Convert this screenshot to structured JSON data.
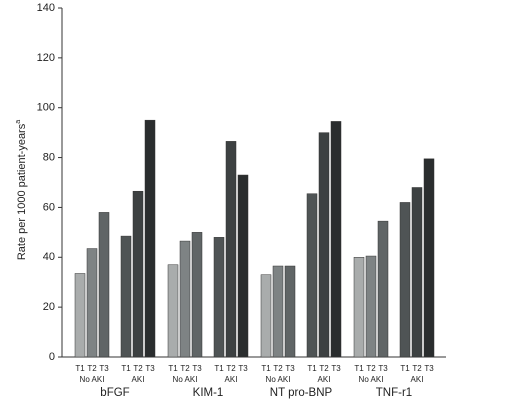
{
  "chart_data": {
    "type": "grouped-bar",
    "ylabel": "Rate per 1000 patient-years",
    "ylabel_note": "a",
    "categories": [
      "bFGF",
      "KIM-1",
      "NT pro-BNP",
      "TNF-r1"
    ],
    "groups": [
      {
        "name": "No AKI",
        "series": [
          {
            "name": "T1",
            "color": "#a9acac",
            "values": [
              33.5,
              37,
              33,
              40
            ]
          },
          {
            "name": "T2",
            "color": "#7e8384",
            "values": [
              43.5,
              46.5,
              36.5,
              40.5
            ]
          },
          {
            "name": "T3",
            "color": "#606566",
            "values": [
              58,
              50,
              36.5,
              54.5
            ]
          }
        ]
      },
      {
        "name": "AKI",
        "series": [
          {
            "name": "T1",
            "color": "#4f5455",
            "values": [
              48.5,
              48,
              65.5,
              62
            ]
          },
          {
            "name": "T2",
            "color": "#3d4142",
            "values": [
              66.5,
              86.5,
              90,
              68
            ]
          },
          {
            "name": "T3",
            "color": "#2a2d2e",
            "values": [
              95,
              73,
              94.5,
              79.5
            ]
          }
        ]
      }
    ],
    "ylim": [
      0,
      140
    ],
    "yticks": [
      0,
      20,
      40,
      60,
      80,
      100,
      120,
      140
    ]
  }
}
